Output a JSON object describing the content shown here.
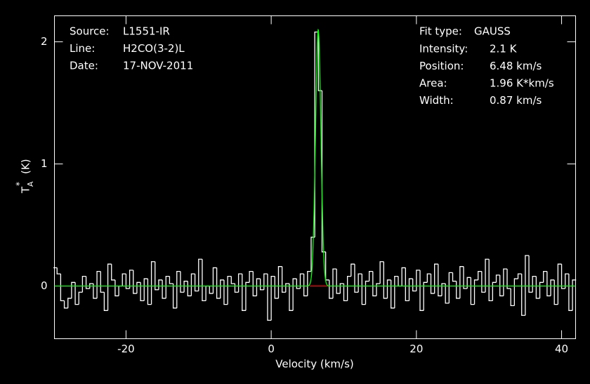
{
  "chart_data": {
    "type": "step",
    "header_left": [
      {
        "label": "Source:",
        "value": "L1551-IR"
      },
      {
        "label": "Line:",
        "value": "H2CO(3-2)L"
      },
      {
        "label": "Date:",
        "value": "17-NOV-2011"
      }
    ],
    "fit": {
      "type_label": "Fit type:",
      "type": "GAUSS",
      "color": "#00ff00",
      "params": [
        {
          "label": "Intensity:",
          "value": 2.1,
          "value_label": "2.1 K"
        },
        {
          "label": "Position:",
          "value": 6.48,
          "value_label": "6.48 km/s"
        },
        {
          "label": "Area:",
          "value": 1.96,
          "value_label": "1.96 K*km/s"
        },
        {
          "label": "Width:",
          "value": 0.87,
          "value_label": "0.87 km/s"
        }
      ]
    },
    "window": {
      "range": [
        5.3,
        8.0
      ],
      "color": "#ff0000"
    },
    "xlabel": "Velocity (km/s)",
    "ylabel": {
      "base": "T",
      "sub": "A",
      "sup": "*",
      "unit": "(K)"
    },
    "xlim": [
      -29.86,
      41.93
    ],
    "ylim": [
      -0.431,
      2.213
    ],
    "xticks": [
      -20,
      0,
      20,
      40
    ],
    "yticks": [
      0,
      1,
      2
    ],
    "color": "#ffffff",
    "x": [
      -29.75,
      -29.25,
      -28.75,
      -28.25,
      -27.75,
      -27.25,
      -26.75,
      -26.25,
      -25.75,
      -25.25,
      -24.75,
      -24.25,
      -23.75,
      -23.25,
      -22.75,
      -22.25,
      -21.75,
      -21.25,
      -20.75,
      -20.25,
      -19.75,
      -19.25,
      -18.75,
      -18.25,
      -17.75,
      -17.25,
      -16.75,
      -16.25,
      -15.75,
      -15.25,
      -14.75,
      -14.25,
      -13.75,
      -13.25,
      -12.75,
      -12.25,
      -11.75,
      -11.25,
      -10.75,
      -10.25,
      -9.75,
      -9.25,
      -8.75,
      -8.25,
      -7.75,
      -7.25,
      -6.75,
      -6.25,
      -5.75,
      -5.25,
      -4.75,
      -4.25,
      -3.75,
      -3.25,
      -2.75,
      -2.25,
      -1.75,
      -1.25,
      -0.75,
      -0.25,
      0.25,
      0.75,
      1.25,
      1.75,
      2.25,
      2.75,
      3.25,
      3.75,
      4.25,
      4.75,
      5.25,
      5.75,
      6.25,
      6.75,
      7.25,
      7.75,
      8.25,
      8.75,
      9.25,
      9.75,
      10.25,
      10.75,
      11.25,
      11.75,
      12.25,
      12.75,
      13.25,
      13.75,
      14.25,
      14.75,
      15.25,
      15.75,
      16.25,
      16.75,
      17.25,
      17.75,
      18.25,
      18.75,
      19.25,
      19.75,
      20.25,
      20.75,
      21.25,
      21.75,
      22.25,
      22.75,
      23.25,
      23.75,
      24.25,
      24.75,
      25.25,
      25.75,
      26.25,
      26.75,
      27.25,
      27.75,
      28.25,
      28.75,
      29.25,
      29.75,
      30.25,
      30.75,
      31.25,
      31.75,
      32.25,
      32.75,
      33.25,
      33.75,
      34.25,
      34.75,
      35.25,
      35.75,
      36.25,
      36.75,
      37.25,
      37.75,
      38.25,
      38.75,
      39.25,
      39.75,
      40.25,
      40.75,
      41.25,
      41.75
    ],
    "values": [
      0.15,
      0.1,
      -0.12,
      -0.18,
      -0.1,
      0.03,
      -0.15,
      -0.05,
      0.08,
      -0.02,
      0.02,
      -0.1,
      0.12,
      -0.05,
      -0.2,
      0.18,
      0.05,
      -0.08,
      0.0,
      0.1,
      -0.02,
      0.13,
      -0.06,
      0.03,
      -0.12,
      0.06,
      -0.15,
      0.2,
      -0.03,
      0.05,
      -0.1,
      0.08,
      0.02,
      -0.18,
      0.12,
      -0.05,
      0.04,
      -0.08,
      0.1,
      -0.04,
      0.22,
      -0.12,
      0.0,
      -0.06,
      0.15,
      -0.1,
      0.05,
      -0.15,
      0.08,
      0.02,
      -0.05,
      0.1,
      -0.2,
      0.03,
      0.12,
      -0.08,
      0.06,
      -0.03,
      0.1,
      -0.28,
      0.08,
      -0.1,
      0.16,
      -0.05,
      0.02,
      -0.2,
      0.06,
      -0.02,
      0.1,
      -0.08,
      0.12,
      0.4,
      2.08,
      1.6,
      0.28,
      0.05,
      -0.1,
      0.14,
      -0.06,
      0.02,
      -0.12,
      0.08,
      0.18,
      -0.05,
      0.1,
      -0.15,
      0.04,
      0.12,
      -0.08,
      0.02,
      0.2,
      -0.1,
      0.05,
      -0.18,
      0.08,
      0.0,
      0.15,
      -0.12,
      0.06,
      -0.04,
      0.13,
      -0.2,
      0.03,
      0.1,
      -0.06,
      0.18,
      -0.08,
      0.02,
      -0.14,
      0.11,
      0.04,
      -0.1,
      0.16,
      -0.02,
      0.07,
      -0.15,
      0.05,
      0.12,
      -0.05,
      0.22,
      -0.12,
      0.03,
      0.09,
      -0.08,
      0.14,
      -0.02,
      -0.16,
      0.06,
      0.1,
      -0.24,
      0.25,
      -0.05,
      0.08,
      -0.1,
      0.03,
      0.12,
      -0.08,
      0.05,
      -0.15,
      0.18,
      -0.02,
      0.1,
      -0.2,
      0.05
    ]
  }
}
